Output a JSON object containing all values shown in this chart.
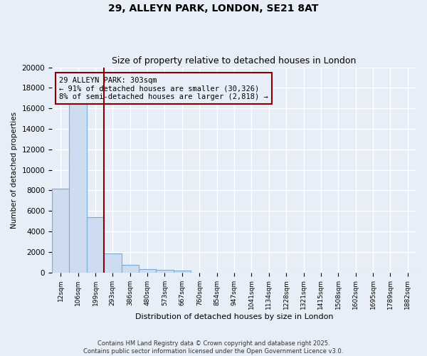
{
  "title1": "29, ALLEYN PARK, LONDON, SE21 8AT",
  "title2": "Size of property relative to detached houses in London",
  "xlabel": "Distribution of detached houses by size in London",
  "ylabel": "Number of detached properties",
  "categories": [
    "12sqm",
    "106sqm",
    "199sqm",
    "293sqm",
    "386sqm",
    "480sqm",
    "573sqm",
    "667sqm",
    "760sqm",
    "854sqm",
    "947sqm",
    "1041sqm",
    "1134sqm",
    "1228sqm",
    "1321sqm",
    "1415sqm",
    "1508sqm",
    "1602sqm",
    "1695sqm",
    "1789sqm",
    "1882sqm"
  ],
  "values": [
    8200,
    16700,
    5400,
    1850,
    720,
    310,
    220,
    170,
    0,
    0,
    0,
    0,
    0,
    0,
    0,
    0,
    0,
    0,
    0,
    0,
    0
  ],
  "bar_color": "#cddcf0",
  "bar_edge_color": "#7badd4",
  "background_color": "#e8eef8",
  "grid_color": "#ffffff",
  "vline_color": "#8b0000",
  "vline_pos": 2.5,
  "annotation_text": "29 ALLEYN PARK: 303sqm\n← 91% of detached houses are smaller (30,326)\n8% of semi-detached houses are larger (2,818) →",
  "annotation_box_color": "#8b0000",
  "ylim": [
    0,
    20000
  ],
  "yticks": [
    0,
    2000,
    4000,
    6000,
    8000,
    10000,
    12000,
    14000,
    16000,
    18000,
    20000
  ],
  "footer1": "Contains HM Land Registry data © Crown copyright and database right 2025.",
  "footer2": "Contains public sector information licensed under the Open Government Licence v3.0."
}
